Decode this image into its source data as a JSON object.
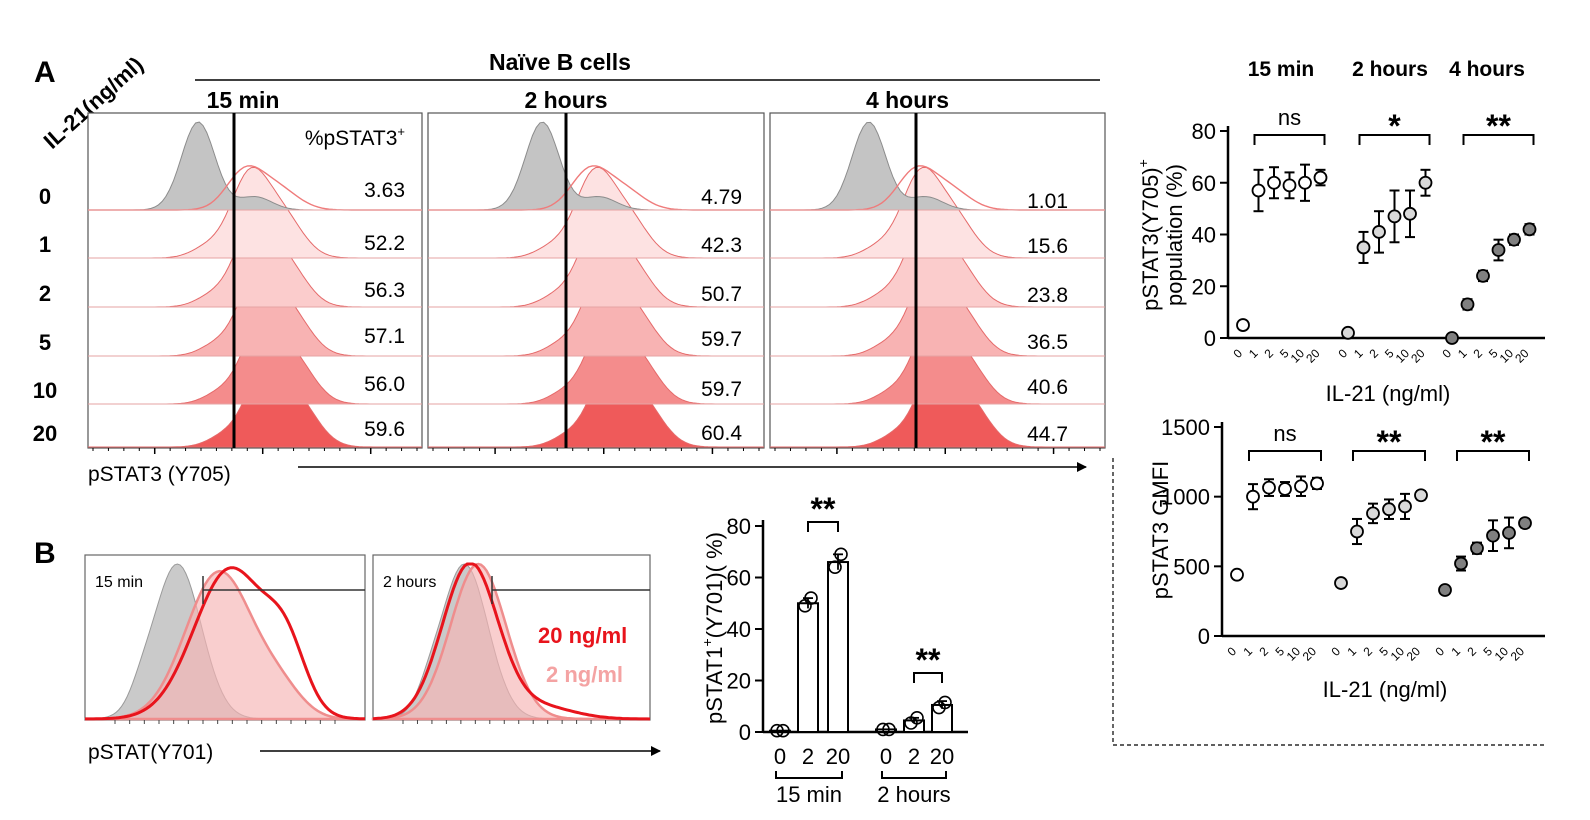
{
  "panel_a": {
    "letter": "A",
    "row_header": "IL-21(ng/ml)",
    "group_title": "Naïve B   cells",
    "pct_header": "%pSTAT3",
    "pct_header_sup": "+",
    "x_axis_label": "pSTAT3 (Y705)",
    "doses": [
      "0",
      "1",
      "2",
      "5",
      "10",
      "20"
    ],
    "timepoints": [
      {
        "label": "15 min",
        "percents": [
          "3.63",
          "52.2",
          "56.3",
          "57.1",
          "56.0",
          "59.6"
        ]
      },
      {
        "label": "2 hours",
        "percents": [
          "4.79",
          "42.3",
          "50.7",
          "59.7",
          "59.7",
          "60.4"
        ]
      },
      {
        "label": "4 hours",
        "percents": [
          "1.01",
          "15.6",
          "23.8",
          "36.5",
          "40.6",
          "44.7"
        ]
      }
    ]
  },
  "panel_b": {
    "letter": "B",
    "histograms": [
      {
        "label": "15 min"
      },
      {
        "label": "2 hours"
      }
    ],
    "legend": [
      {
        "label": "20 ng/ml",
        "color": "#e8141c"
      },
      {
        "label": "2 ng/ml",
        "color": "#f4a3a3"
      }
    ],
    "x_axis_label": "pSTAT(Y701)"
  },
  "chart_data": [
    {
      "type": "scatter",
      "ylabel": "pSTAT3(Y705)+ population (%)",
      "ylabel_line1": "pSTAT3(Y705)",
      "ylabel_sup": "+",
      "ylabel_line2": "population (%)",
      "xlabel": "IL-21  (ng/ml)",
      "ylim": [
        0,
        80
      ],
      "yticks": [
        "0",
        "20",
        "40",
        "60",
        "80"
      ],
      "x": [
        "0",
        "1",
        "2",
        "5",
        "10",
        "20"
      ],
      "groups": [
        {
          "label": "15 min",
          "fill": "#ffffff",
          "values": [
            5,
            57,
            60,
            59,
            60,
            62
          ],
          "errors": [
            0,
            8,
            6,
            5,
            7,
            3
          ],
          "significance": "ns"
        },
        {
          "label": "2 hours",
          "fill": "#d9d9d9",
          "values": [
            2,
            35,
            41,
            47,
            48,
            60
          ],
          "errors": [
            0,
            6,
            8,
            10,
            9,
            5
          ],
          "significance": "*"
        },
        {
          "label": "4 hours",
          "fill": "#808080",
          "values": [
            0,
            13,
            24,
            34,
            38,
            42
          ],
          "errors": [
            0,
            2,
            2,
            4,
            2,
            2
          ],
          "significance": "**"
        }
      ]
    },
    {
      "type": "scatter",
      "ylabel": "pSTAT3 GMFI",
      "xlabel": "IL-21  (ng/ml)",
      "ylim": [
        0,
        1500
      ],
      "yticks": [
        "0",
        "500",
        "1000",
        "1500"
      ],
      "x": [
        "0",
        "1",
        "2",
        "5",
        "10",
        "20"
      ],
      "groups": [
        {
          "label": "15 min",
          "fill": "#ffffff",
          "values": [
            440,
            1000,
            1065,
            1055,
            1075,
            1095
          ],
          "errors": [
            0,
            90,
            60,
            50,
            70,
            40
          ],
          "significance": "ns"
        },
        {
          "label": "2 hours",
          "fill": "#d9d9d9",
          "values": [
            380,
            750,
            880,
            910,
            930,
            1010
          ],
          "errors": [
            0,
            90,
            70,
            70,
            90,
            30
          ],
          "significance": "**"
        },
        {
          "label": "4 hours",
          "fill": "#808080",
          "values": [
            330,
            520,
            630,
            720,
            740,
            810
          ],
          "errors": [
            0,
            50,
            40,
            110,
            110,
            30
          ],
          "significance": "**"
        }
      ]
    },
    {
      "type": "bar",
      "ylabel": "pSTAT1+(Y701)( %)",
      "ylabel_pre": "pSTAT1",
      "ylabel_sup": "+",
      "ylabel_post": "(Y701)( %)",
      "ylim": [
        0,
        80
      ],
      "yticks": [
        "0",
        "20",
        "40",
        "60",
        "80"
      ],
      "categories": [
        "0",
        "2",
        "20",
        "0",
        "2",
        "20"
      ],
      "groups": [
        {
          "label": "15 min",
          "significance": "**"
        },
        {
          "label": "2 hours",
          "significance": "**"
        }
      ],
      "values": [
        0.5,
        50,
        66,
        1,
        4.5,
        10.5
      ],
      "errors": [
        0,
        2,
        3,
        0,
        1,
        1.5
      ],
      "points": [
        [
          0.5,
          0.5
        ],
        [
          49,
          52
        ],
        [
          64,
          69
        ],
        [
          1,
          1
        ],
        [
          3.5,
          5.5
        ],
        [
          9.5,
          11.5
        ]
      ]
    }
  ]
}
